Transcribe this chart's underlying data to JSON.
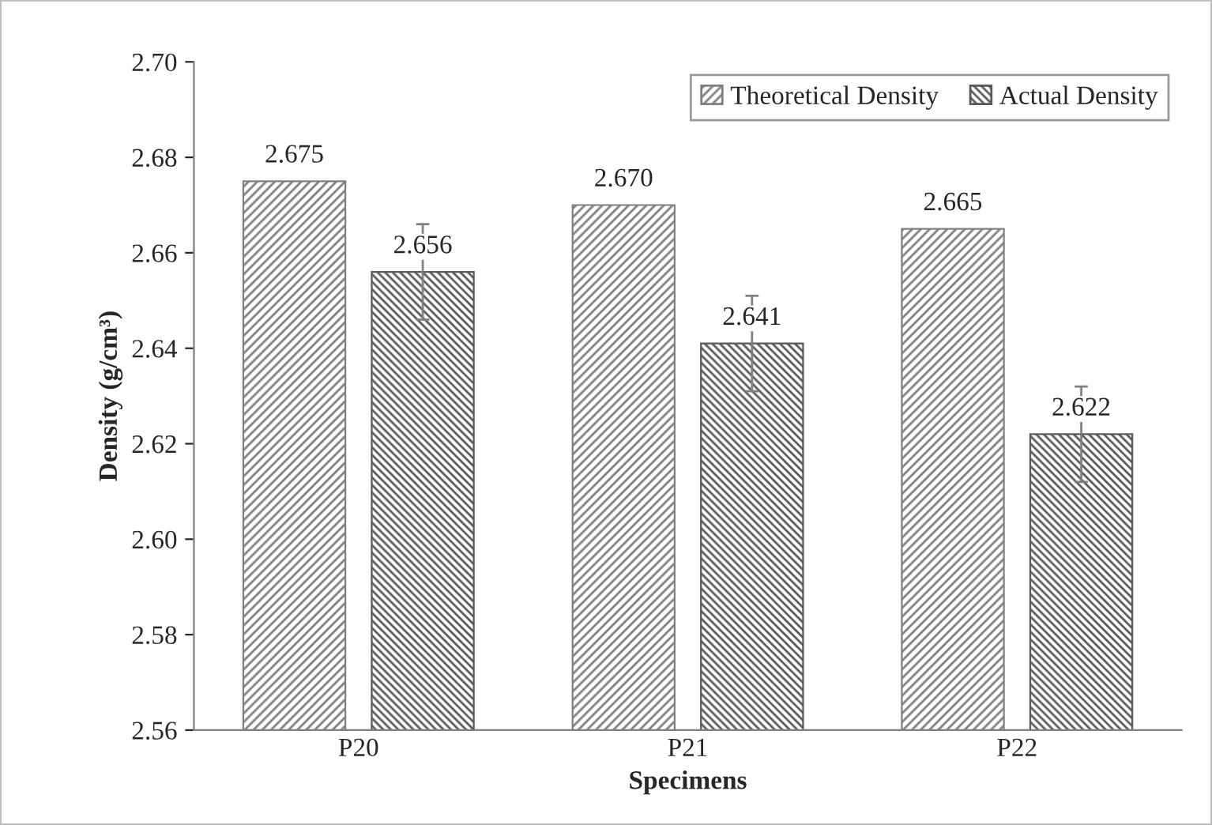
{
  "chart_data": {
    "type": "bar",
    "xlabel": "Specimens",
    "ylabel": "Density (g/cm³)",
    "categories": [
      "P20",
      "P21",
      "P22"
    ],
    "series": [
      {
        "name": "Theoretical Density",
        "color": "#808080",
        "values": [
          2.675,
          2.67,
          2.665
        ],
        "value_labels": [
          "2.675",
          "2.670",
          "2.665"
        ]
      },
      {
        "name": "Actual Density",
        "color": "#595959",
        "values": [
          2.656,
          2.641,
          2.622
        ],
        "value_labels": [
          "2.656",
          "2.641",
          "2.622"
        ],
        "errors": [
          0.01,
          0.01,
          0.01
        ]
      }
    ],
    "ylim": [
      2.56,
      2.7
    ],
    "yticks": [
      {
        "value": 2.56,
        "label": "2.56"
      },
      {
        "value": 2.58,
        "label": "2.58"
      },
      {
        "value": 2.6,
        "label": "2.60"
      },
      {
        "value": 2.62,
        "label": "2.62"
      },
      {
        "value": 2.64,
        "label": "2.64"
      },
      {
        "value": 2.66,
        "label": "2.66"
      },
      {
        "value": 2.68,
        "label": "2.68"
      },
      {
        "value": 2.7,
        "label": "2.70"
      }
    ],
    "grid": false,
    "legend": "top right"
  }
}
